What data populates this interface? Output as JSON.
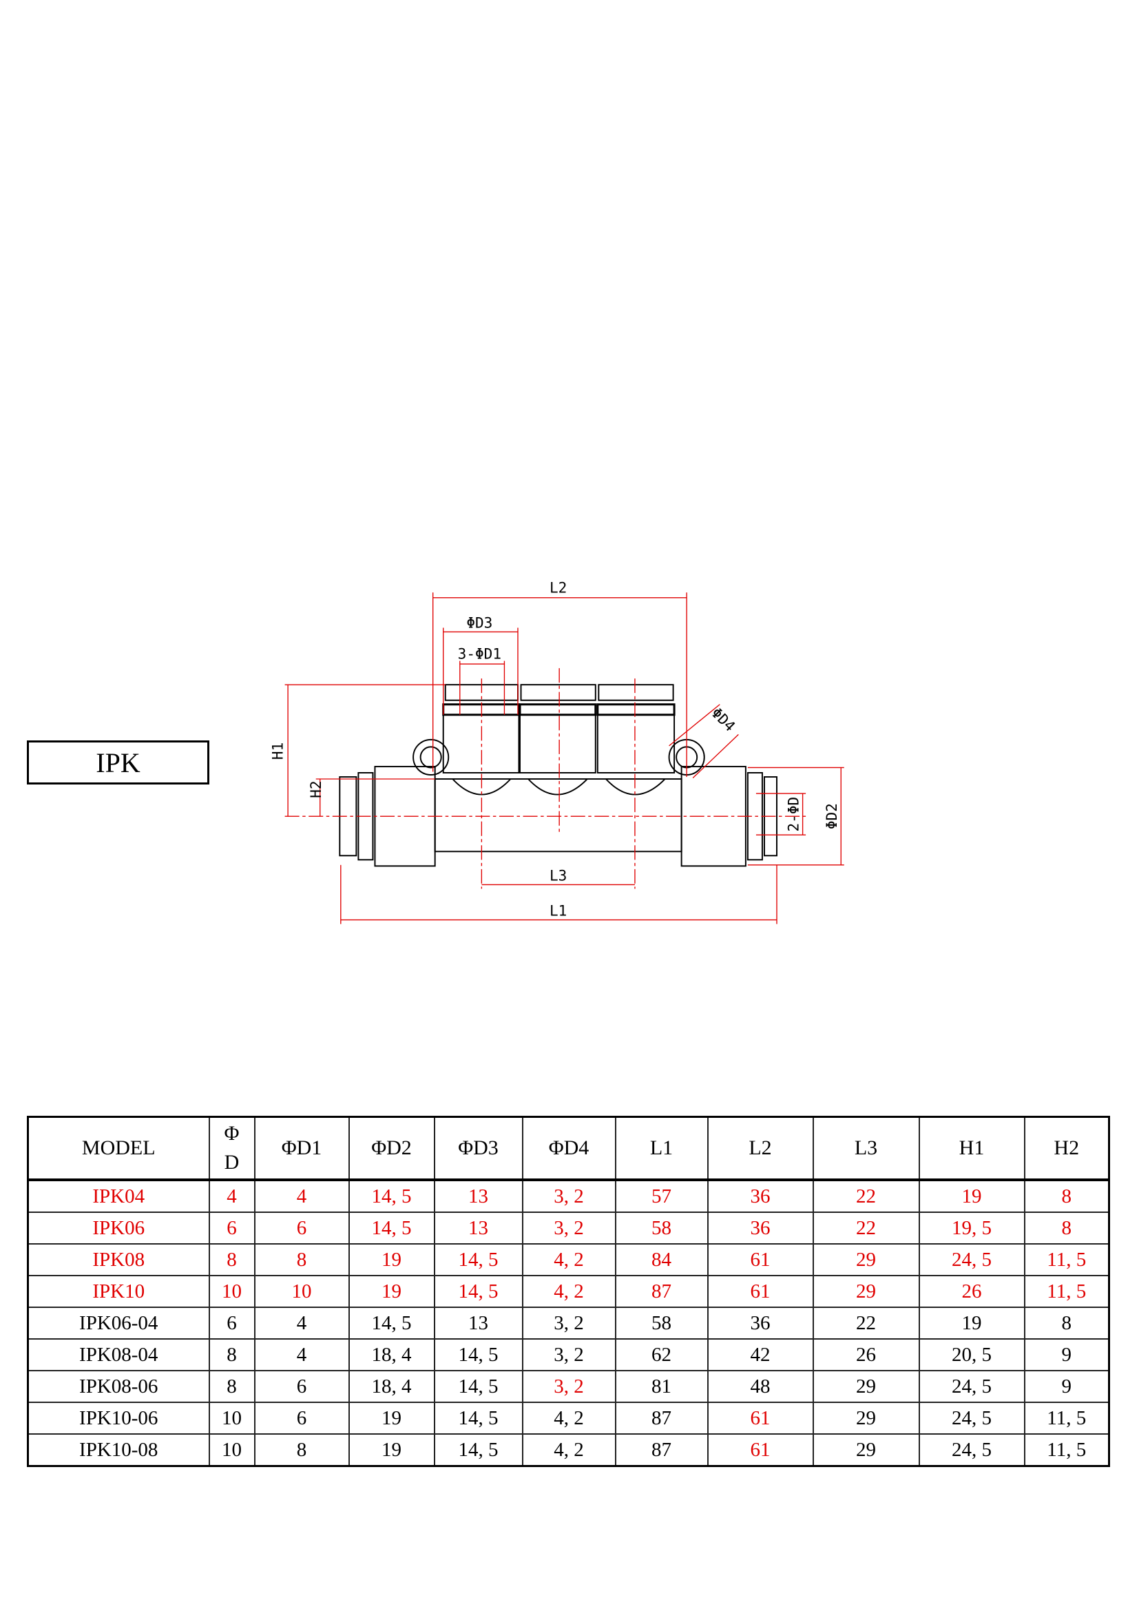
{
  "model_label": "IPK",
  "drawing": {
    "dimension_labels": {
      "L1": "L1",
      "L2": "L2",
      "L3": "L3",
      "H1": "H1",
      "H2": "H2",
      "D1": "3-ΦD1",
      "D2": "ΦD2",
      "D3": "ΦD3",
      "D4": "ΦD4",
      "D": "2-ΦD"
    },
    "colors": {
      "dimension": "#e00000",
      "outline": "#000000"
    }
  },
  "table": {
    "headers": [
      "MODEL",
      "Φ\nD",
      "ΦD1",
      "ΦD2",
      "ΦD3",
      "ΦD4",
      "L1",
      "L2",
      "L3",
      "H1",
      "H2"
    ],
    "header_d_top": "Φ",
    "header_d_bottom": "D",
    "rows": [
      {
        "cells": [
          "IPK04",
          "4",
          "4",
          "14, 5",
          "13",
          "3, 2",
          "57",
          "36",
          "22",
          "19",
          "8"
        ],
        "red": [
          0,
          1,
          2,
          3,
          4,
          5,
          6,
          7,
          8,
          9,
          10
        ]
      },
      {
        "cells": [
          "IPK06",
          "6",
          "6",
          "14, 5",
          "13",
          "3, 2",
          "58",
          "36",
          "22",
          "19, 5",
          "8"
        ],
        "red": [
          0,
          1,
          2,
          3,
          4,
          5,
          6,
          7,
          8,
          9,
          10
        ]
      },
      {
        "cells": [
          "IPK08",
          "8",
          "8",
          "19",
          "14, 5",
          "4, 2",
          "84",
          "61",
          "29",
          "24, 5",
          "11, 5"
        ],
        "red": [
          0,
          1,
          2,
          3,
          4,
          5,
          6,
          7,
          8,
          9,
          10
        ]
      },
      {
        "cells": [
          "IPK10",
          "10",
          "10",
          "19",
          "14, 5",
          "4, 2",
          "87",
          "61",
          "29",
          "26",
          "11, 5"
        ],
        "red": [
          0,
          1,
          2,
          3,
          4,
          5,
          6,
          7,
          8,
          9,
          10
        ]
      },
      {
        "cells": [
          "IPK06-04",
          "6",
          "4",
          "14, 5",
          "13",
          "3, 2",
          "58",
          "36",
          "22",
          "19",
          "8"
        ],
        "red": []
      },
      {
        "cells": [
          "IPK08-04",
          "8",
          "4",
          "18, 4",
          "14, 5",
          "3, 2",
          "62",
          "42",
          "26",
          "20, 5",
          "9"
        ],
        "red": []
      },
      {
        "cells": [
          "IPK08-06",
          "8",
          "6",
          "18, 4",
          "14, 5",
          "3, 2",
          "81",
          "48",
          "29",
          "24, 5",
          "9"
        ],
        "red": [
          5
        ]
      },
      {
        "cells": [
          "IPK10-06",
          "10",
          "6",
          "19",
          "14, 5",
          "4, 2",
          "87",
          "61",
          "29",
          "24, 5",
          "11, 5"
        ],
        "red": [
          7
        ]
      },
      {
        "cells": [
          "IPK10-08",
          "10",
          "8",
          "19",
          "14, 5",
          "4, 2",
          "87",
          "61",
          "29",
          "24, 5",
          "11, 5"
        ],
        "red": [
          7
        ]
      }
    ]
  }
}
